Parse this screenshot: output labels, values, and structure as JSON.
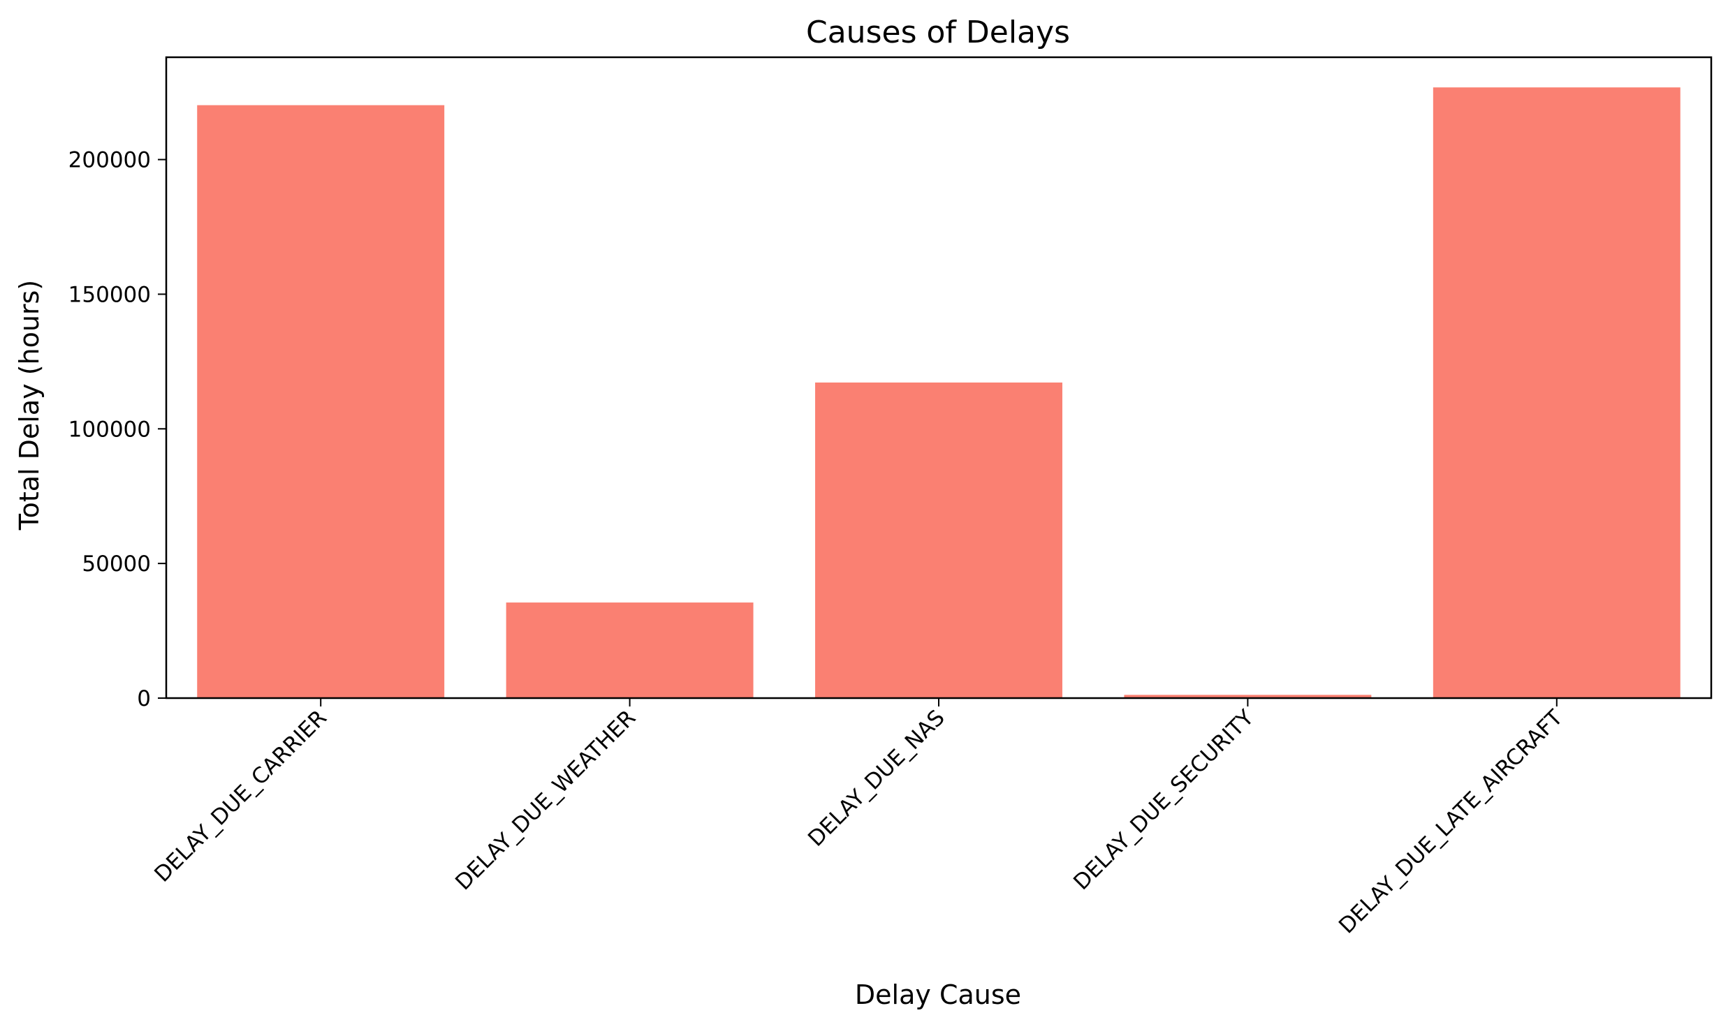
{
  "chart_data": {
    "type": "bar",
    "title": "Causes of Delays",
    "xlabel": "Delay Cause",
    "ylabel": "Total Delay (hours)",
    "categories": [
      "DELAY_DUE_CARRIER",
      "DELAY_DUE_WEATHER",
      "DELAY_DUE_NAS",
      "DELAY_DUE_SECURITY",
      "DELAY_DUE_LATE_AIRCRAFT"
    ],
    "values": [
      220200,
      35500,
      117200,
      1200,
      226800
    ],
    "ylim": [
      0,
      238000
    ],
    "yticks": [
      0,
      50000,
      100000,
      150000,
      200000
    ],
    "yticklabels": [
      "0",
      "50000",
      "100000",
      "150000",
      "200000"
    ],
    "bar_color": "#fa8072",
    "grid": false,
    "legend": "none"
  }
}
